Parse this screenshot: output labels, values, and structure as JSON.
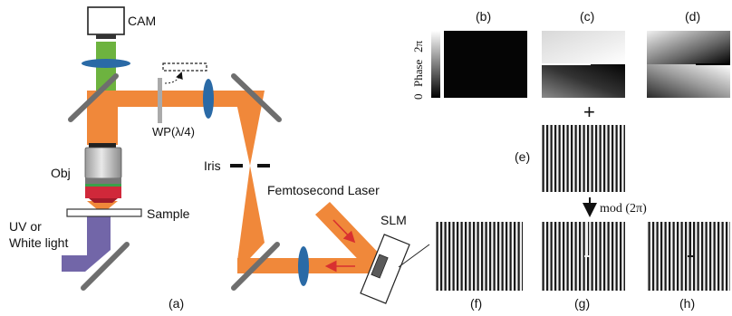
{
  "labels": {
    "cam": "CAM",
    "obj": "Obj",
    "sample": "Sample",
    "uv_line1": "UV or",
    "uv_line2": "White light",
    "waveplate": "WP(λ/4)",
    "iris": "Iris",
    "laser": "Femtosecond Laser",
    "slm": "SLM",
    "panel_a": "(a)"
  },
  "panels": {
    "b": "(b)",
    "c": "(c)",
    "d": "(d)",
    "e": "(e)",
    "f": "(f)",
    "g": "(g)",
    "h": "(h)"
  },
  "colorbar": {
    "min": "0",
    "max": "2π",
    "title": "Phase"
  },
  "operators": {
    "plus": "+",
    "mod": "mod (2π)"
  },
  "colors": {
    "beam_orange": "#f0883a",
    "beam_green": "#6db33f",
    "uv_purple": "#7266a8",
    "lens_blue": "#2a6aa6",
    "mirror_gray": "#6e6e6e",
    "arrow_red": "#d83030"
  }
}
